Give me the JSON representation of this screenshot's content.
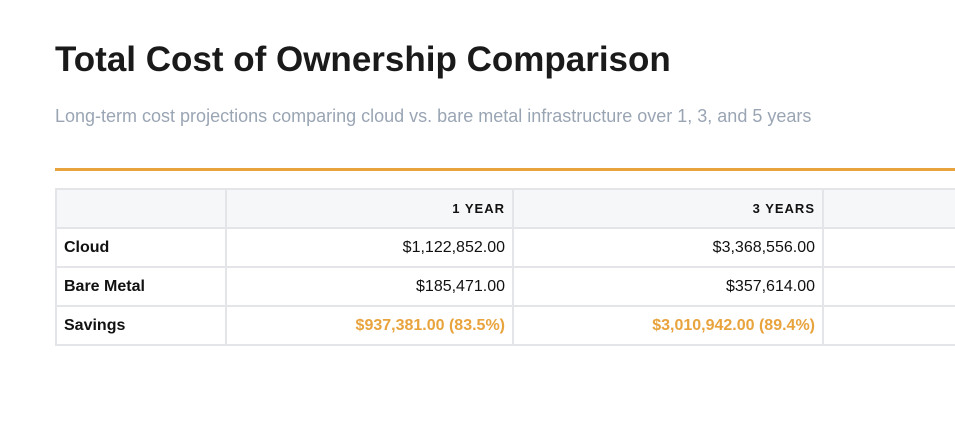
{
  "header": {
    "title": "Total Cost of Ownership Comparison",
    "subtitle": "Long-term cost projections comparing cloud vs. bare metal infrastructure over 1, 3, and 5 years"
  },
  "table": {
    "columns": [
      "1 YEAR",
      "3 YEARS"
    ],
    "rows": [
      {
        "label": "Cloud",
        "cells": [
          "$1,122,852.00",
          "$3,368,556.00"
        ]
      },
      {
        "label": "Bare Metal",
        "cells": [
          "$185,471.00",
          "$357,614.00"
        ]
      },
      {
        "label": "Savings",
        "cells": [
          "$937,381.00 (83.5%)",
          "$3,010,942.00 (89.4%)"
        ]
      }
    ]
  }
}
